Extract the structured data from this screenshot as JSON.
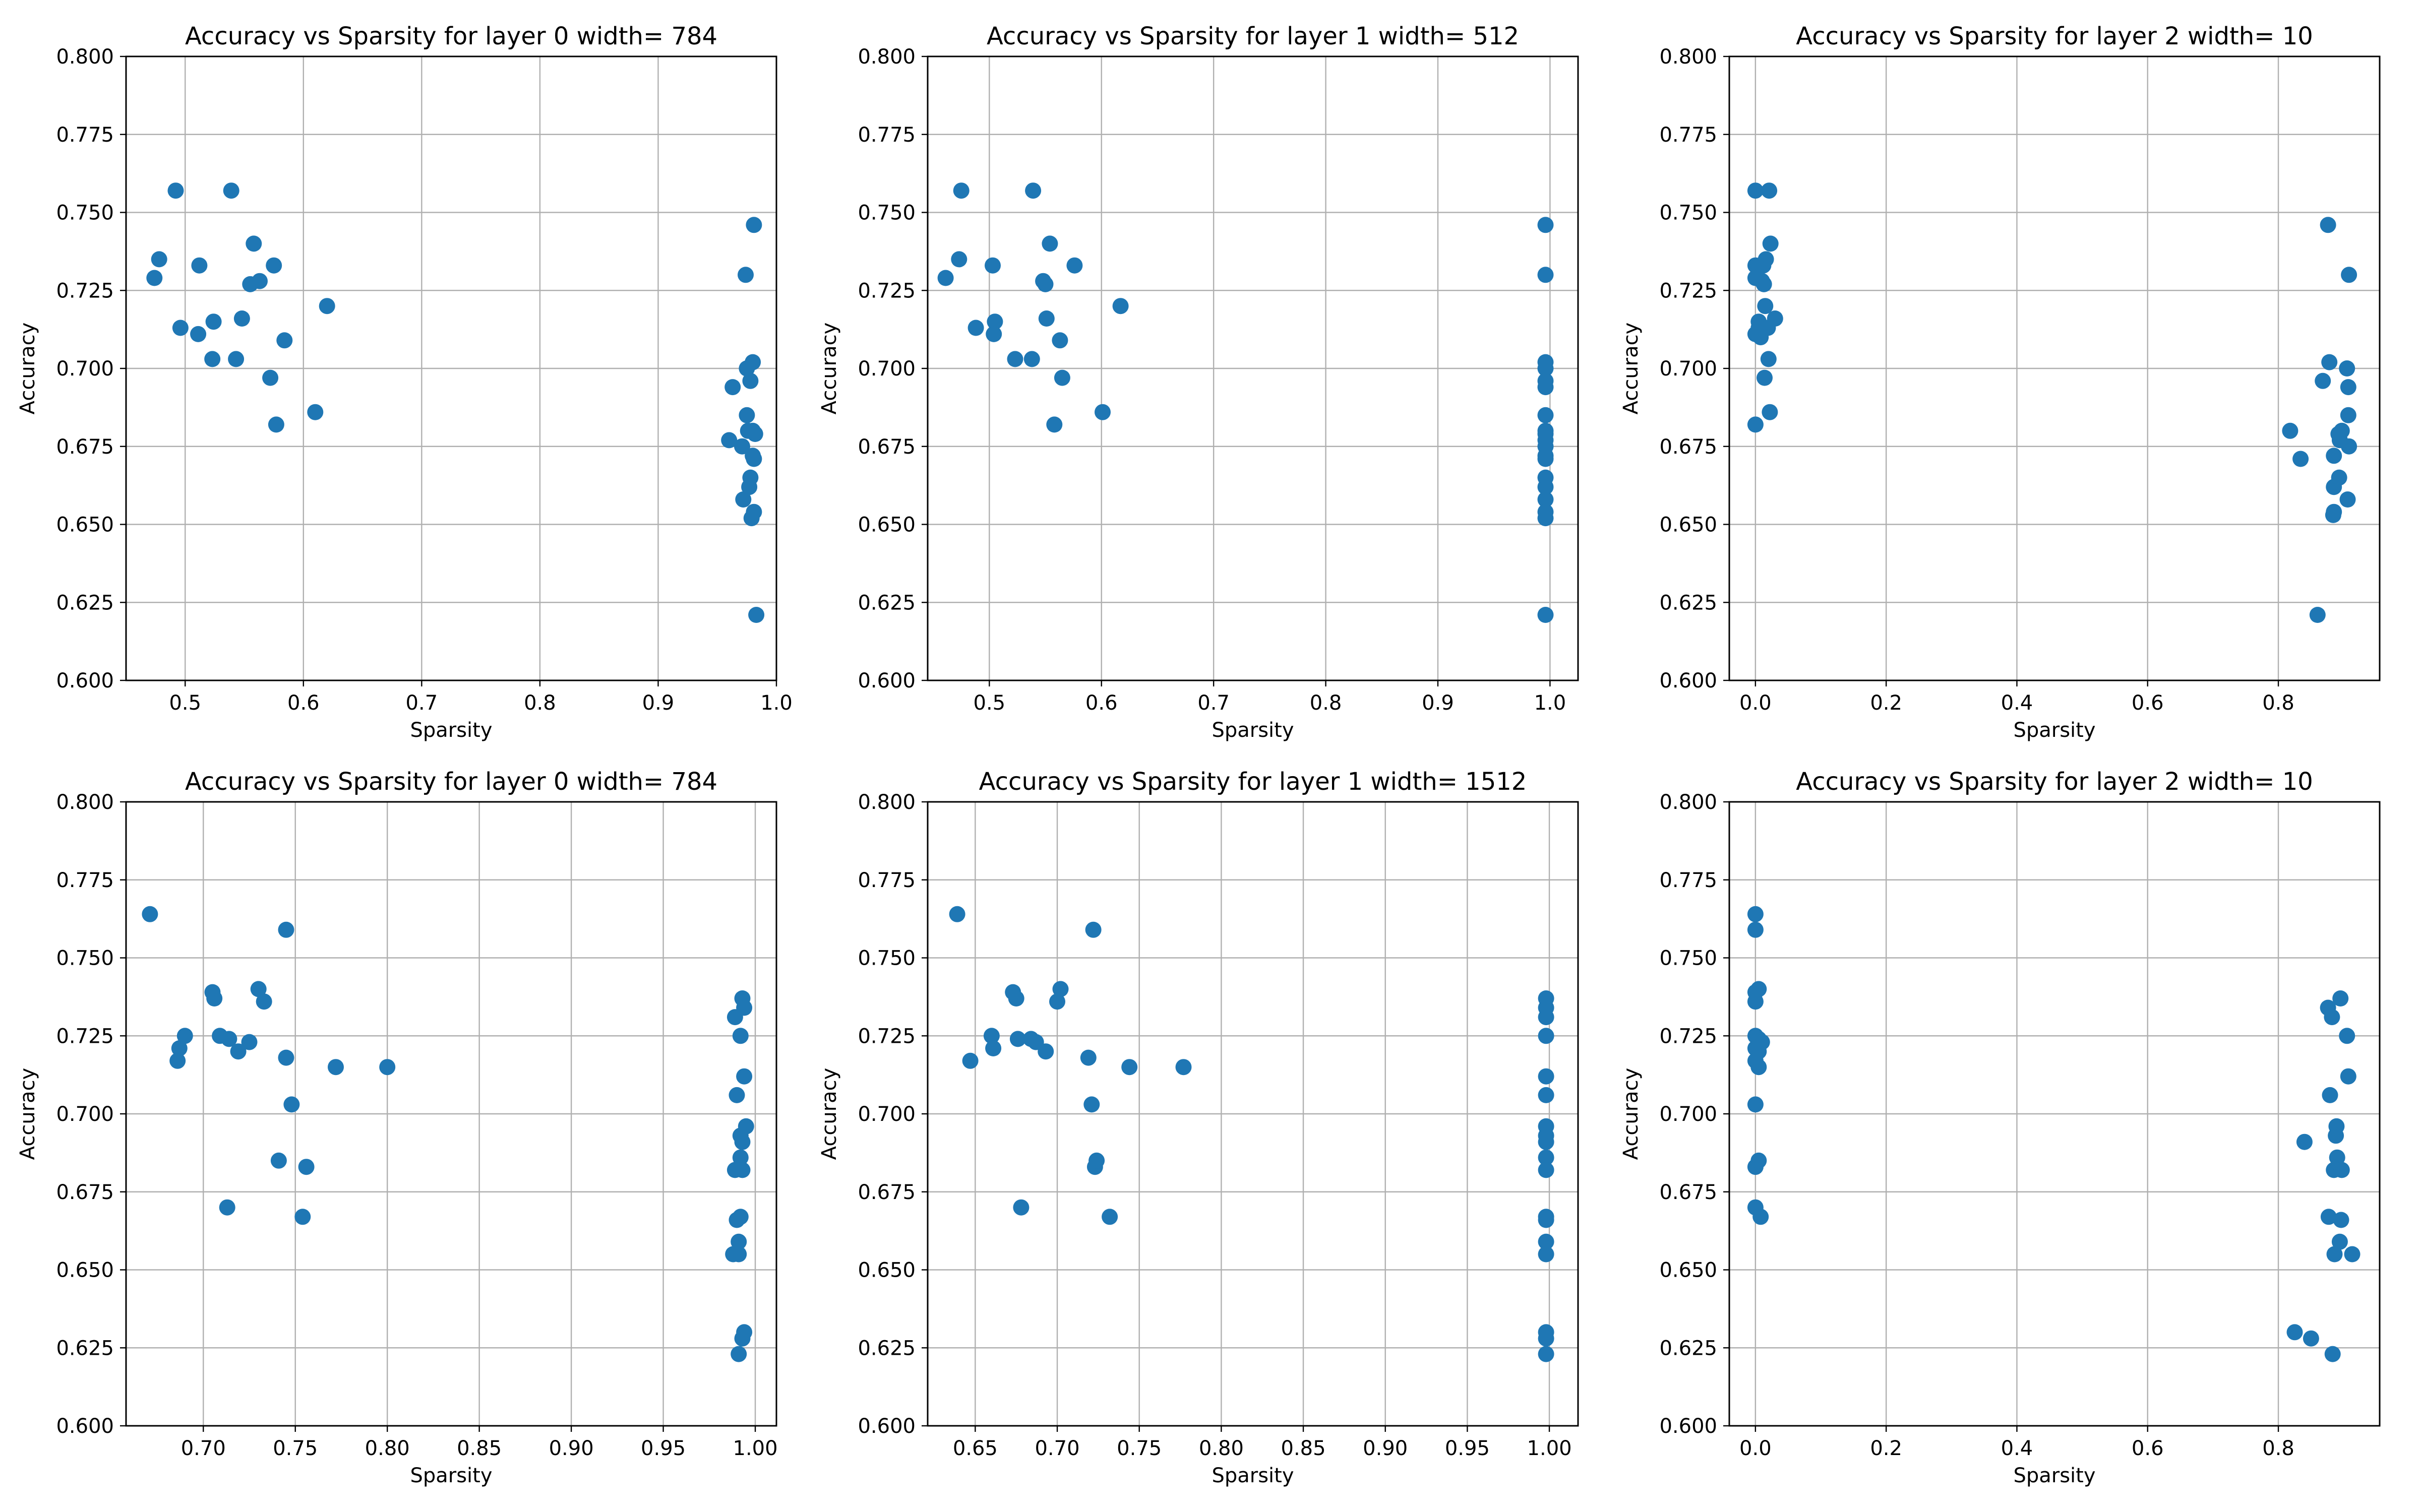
{
  "chart_data": [
    {
      "type": "scatter",
      "title": "Accuracy vs Sparsity for layer 0 width= 784",
      "xlabel": "Sparsity",
      "ylabel": "Accuracy",
      "xlim": [
        0.45,
        1.0
      ],
      "ylim": [
        0.6,
        0.8
      ],
      "xticks": [
        "0.5",
        "0.6",
        "0.7",
        "0.8",
        "0.9",
        "1.0"
      ],
      "yticks": [
        "0.600",
        "0.625",
        "0.650",
        "0.675",
        "0.700",
        "0.725",
        "0.750",
        "0.775",
        "0.800"
      ],
      "grid": true,
      "color": "#1f77b4",
      "points": [
        [
          0.474,
          0.729
        ],
        [
          0.478,
          0.735
        ],
        [
          0.492,
          0.757
        ],
        [
          0.496,
          0.713
        ],
        [
          0.511,
          0.711
        ],
        [
          0.512,
          0.733
        ],
        [
          0.523,
          0.703
        ],
        [
          0.524,
          0.715
        ],
        [
          0.539,
          0.757
        ],
        [
          0.543,
          0.703
        ],
        [
          0.548,
          0.716
        ],
        [
          0.555,
          0.727
        ],
        [
          0.558,
          0.74
        ],
        [
          0.563,
          0.728
        ],
        [
          0.572,
          0.697
        ],
        [
          0.575,
          0.733
        ],
        [
          0.577,
          0.682
        ],
        [
          0.584,
          0.709
        ],
        [
          0.61,
          0.686
        ],
        [
          0.62,
          0.72
        ],
        [
          0.96,
          0.677
        ],
        [
          0.963,
          0.694
        ],
        [
          0.971,
          0.675
        ],
        [
          0.972,
          0.658
        ],
        [
          0.974,
          0.73
        ],
        [
          0.975,
          0.7
        ],
        [
          0.975,
          0.685
        ],
        [
          0.976,
          0.68
        ],
        [
          0.977,
          0.662
        ],
        [
          0.978,
          0.665
        ],
        [
          0.978,
          0.696
        ],
        [
          0.979,
          0.652
        ],
        [
          0.98,
          0.702
        ],
        [
          0.98,
          0.68
        ],
        [
          0.98,
          0.672
        ],
        [
          0.981,
          0.654
        ],
        [
          0.981,
          0.746
        ],
        [
          0.981,
          0.671
        ],
        [
          0.982,
          0.679
        ],
        [
          0.983,
          0.621
        ]
      ]
    },
    {
      "type": "scatter",
      "title": "Accuracy vs Sparsity for layer 1 width= 512",
      "xlabel": "Sparsity",
      "ylabel": "Accuracy",
      "xlim": [
        0.445,
        1.025
      ],
      "ylim": [
        0.6,
        0.8
      ],
      "xticks": [
        "0.5",
        "0.6",
        "0.7",
        "0.8",
        "0.9",
        "1.0"
      ],
      "yticks": [
        "0.600",
        "0.625",
        "0.650",
        "0.675",
        "0.700",
        "0.725",
        "0.750",
        "0.775",
        "0.800"
      ],
      "grid": true,
      "color": "#1f77b4",
      "points": [
        [
          0.461,
          0.729
        ],
        [
          0.473,
          0.735
        ],
        [
          0.475,
          0.757
        ],
        [
          0.488,
          0.713
        ],
        [
          0.503,
          0.733
        ],
        [
          0.504,
          0.711
        ],
        [
          0.505,
          0.715
        ],
        [
          0.523,
          0.703
        ],
        [
          0.538,
          0.703
        ],
        [
          0.539,
          0.757
        ],
        [
          0.548,
          0.728
        ],
        [
          0.55,
          0.727
        ],
        [
          0.551,
          0.716
        ],
        [
          0.554,
          0.74
        ],
        [
          0.558,
          0.682
        ],
        [
          0.563,
          0.709
        ],
        [
          0.565,
          0.697
        ],
        [
          0.576,
          0.733
        ],
        [
          0.601,
          0.686
        ],
        [
          0.617,
          0.72
        ],
        [
          0.996,
          0.746
        ],
        [
          0.996,
          0.73
        ],
        [
          0.996,
          0.702
        ],
        [
          0.996,
          0.7
        ],
        [
          0.996,
          0.696
        ],
        [
          0.996,
          0.694
        ],
        [
          0.996,
          0.685
        ],
        [
          0.996,
          0.68
        ],
        [
          0.996,
          0.679
        ],
        [
          0.996,
          0.677
        ],
        [
          0.996,
          0.675
        ],
        [
          0.996,
          0.672
        ],
        [
          0.996,
          0.671
        ],
        [
          0.996,
          0.665
        ],
        [
          0.996,
          0.662
        ],
        [
          0.996,
          0.658
        ],
        [
          0.996,
          0.654
        ],
        [
          0.996,
          0.652
        ],
        [
          0.996,
          0.621
        ]
      ]
    },
    {
      "type": "scatter",
      "title": "Accuracy vs Sparsity for layer 2 width= 10",
      "xlabel": "Sparsity",
      "ylabel": "Accuracy",
      "xlim": [
        -0.04,
        0.955
      ],
      "ylim": [
        0.6,
        0.8
      ],
      "xticks": [
        "0.0",
        "0.2",
        "0.4",
        "0.6",
        "0.8"
      ],
      "yticks": [
        "0.600",
        "0.625",
        "0.650",
        "0.675",
        "0.700",
        "0.725",
        "0.750",
        "0.775",
        "0.800"
      ],
      "grid": true,
      "color": "#1f77b4",
      "points": [
        [
          0.0,
          0.757
        ],
        [
          0.0,
          0.733
        ],
        [
          0.0,
          0.729
        ],
        [
          0.0,
          0.711
        ],
        [
          0.0,
          0.682
        ],
        [
          0.005,
          0.713
        ],
        [
          0.005,
          0.715
        ],
        [
          0.008,
          0.71
        ],
        [
          0.01,
          0.728
        ],
        [
          0.012,
          0.733
        ],
        [
          0.013,
          0.727
        ],
        [
          0.014,
          0.697
        ],
        [
          0.015,
          0.72
        ],
        [
          0.016,
          0.735
        ],
        [
          0.019,
          0.713
        ],
        [
          0.02,
          0.703
        ],
        [
          0.021,
          0.757
        ],
        [
          0.022,
          0.686
        ],
        [
          0.023,
          0.74
        ],
        [
          0.03,
          0.716
        ],
        [
          0.818,
          0.68
        ],
        [
          0.834,
          0.671
        ],
        [
          0.86,
          0.621
        ],
        [
          0.868,
          0.696
        ],
        [
          0.876,
          0.746
        ],
        [
          0.878,
          0.702
        ],
        [
          0.884,
          0.653
        ],
        [
          0.885,
          0.654
        ],
        [
          0.885,
          0.672
        ],
        [
          0.885,
          0.662
        ],
        [
          0.892,
          0.679
        ],
        [
          0.893,
          0.665
        ],
        [
          0.894,
          0.677
        ],
        [
          0.897,
          0.68
        ],
        [
          0.905,
          0.7
        ],
        [
          0.906,
          0.658
        ],
        [
          0.907,
          0.685
        ],
        [
          0.907,
          0.694
        ],
        [
          0.908,
          0.73
        ],
        [
          0.908,
          0.675
        ]
      ]
    },
    {
      "type": "scatter",
      "title": "Accuracy vs Sparsity for layer 0 width= 784",
      "xlabel": "Sparsity",
      "ylabel": "Accuracy",
      "xlim": [
        0.658,
        1.0115
      ],
      "ylim": [
        0.6,
        0.8
      ],
      "xticks": [
        "0.70",
        "0.75",
        "0.80",
        "0.85",
        "0.90",
        "0.95",
        "1.00"
      ],
      "yticks": [
        "0.600",
        "0.625",
        "0.650",
        "0.675",
        "0.700",
        "0.725",
        "0.750",
        "0.775",
        "0.800"
      ],
      "grid": true,
      "color": "#1f77b4",
      "points": [
        [
          0.671,
          0.764
        ],
        [
          0.686,
          0.717
        ],
        [
          0.687,
          0.721
        ],
        [
          0.69,
          0.725
        ],
        [
          0.705,
          0.739
        ],
        [
          0.706,
          0.737
        ],
        [
          0.709,
          0.725
        ],
        [
          0.713,
          0.67
        ],
        [
          0.714,
          0.724
        ],
        [
          0.719,
          0.72
        ],
        [
          0.725,
          0.723
        ],
        [
          0.73,
          0.74
        ],
        [
          0.733,
          0.736
        ],
        [
          0.741,
          0.685
        ],
        [
          0.745,
          0.759
        ],
        [
          0.745,
          0.718
        ],
        [
          0.748,
          0.703
        ],
        [
          0.754,
          0.667
        ],
        [
          0.756,
          0.683
        ],
        [
          0.772,
          0.715
        ],
        [
          0.8,
          0.715
        ],
        [
          0.988,
          0.655
        ],
        [
          0.989,
          0.682
        ],
        [
          0.989,
          0.731
        ],
        [
          0.99,
          0.706
        ],
        [
          0.99,
          0.666
        ],
        [
          0.991,
          0.623
        ],
        [
          0.991,
          0.659
        ],
        [
          0.991,
          0.655
        ],
        [
          0.992,
          0.725
        ],
        [
          0.992,
          0.693
        ],
        [
          0.992,
          0.686
        ],
        [
          0.992,
          0.667
        ],
        [
          0.993,
          0.737
        ],
        [
          0.993,
          0.628
        ],
        [
          0.993,
          0.691
        ],
        [
          0.993,
          0.682
        ],
        [
          0.994,
          0.734
        ],
        [
          0.994,
          0.712
        ],
        [
          0.994,
          0.63
        ],
        [
          0.995,
          0.696
        ]
      ]
    },
    {
      "type": "scatter",
      "title": "Accuracy vs Sparsity for layer 1 width= 1512",
      "xlabel": "Sparsity",
      "ylabel": "Accuracy",
      "xlim": [
        0.621,
        1.0175
      ],
      "ylim": [
        0.6,
        0.8
      ],
      "xticks": [
        "0.65",
        "0.70",
        "0.75",
        "0.80",
        "0.85",
        "0.90",
        "0.95",
        "1.00"
      ],
      "yticks": [
        "0.600",
        "0.625",
        "0.650",
        "0.675",
        "0.700",
        "0.725",
        "0.750",
        "0.775",
        "0.800"
      ],
      "grid": true,
      "color": "#1f77b4",
      "points": [
        [
          0.639,
          0.764
        ],
        [
          0.647,
          0.717
        ],
        [
          0.66,
          0.725
        ],
        [
          0.661,
          0.721
        ],
        [
          0.673,
          0.739
        ],
        [
          0.675,
          0.737
        ],
        [
          0.676,
          0.724
        ],
        [
          0.678,
          0.67
        ],
        [
          0.684,
          0.724
        ],
        [
          0.687,
          0.723
        ],
        [
          0.693,
          0.72
        ],
        [
          0.7,
          0.736
        ],
        [
          0.702,
          0.74
        ],
        [
          0.719,
          0.718
        ],
        [
          0.721,
          0.703
        ],
        [
          0.722,
          0.759
        ],
        [
          0.723,
          0.683
        ],
        [
          0.724,
          0.685
        ],
        [
          0.732,
          0.667
        ],
        [
          0.744,
          0.715
        ],
        [
          0.777,
          0.715
        ],
        [
          0.998,
          0.737
        ],
        [
          0.998,
          0.734
        ],
        [
          0.998,
          0.731
        ],
        [
          0.998,
          0.725
        ],
        [
          0.998,
          0.712
        ],
        [
          0.998,
          0.706
        ],
        [
          0.998,
          0.696
        ],
        [
          0.998,
          0.693
        ],
        [
          0.998,
          0.691
        ],
        [
          0.998,
          0.686
        ],
        [
          0.998,
          0.682
        ],
        [
          0.998,
          0.667
        ],
        [
          0.998,
          0.666
        ],
        [
          0.998,
          0.659
        ],
        [
          0.998,
          0.655
        ],
        [
          0.998,
          0.63
        ],
        [
          0.998,
          0.628
        ],
        [
          0.998,
          0.623
        ]
      ]
    },
    {
      "type": "scatter",
      "title": "Accuracy vs Sparsity for layer 2 width= 10",
      "xlabel": "Sparsity",
      "ylabel": "Accuracy",
      "xlim": [
        -0.04,
        0.955
      ],
      "ylim": [
        0.6,
        0.8
      ],
      "xticks": [
        "0.0",
        "0.2",
        "0.4",
        "0.6",
        "0.8"
      ],
      "yticks": [
        "0.600",
        "0.625",
        "0.650",
        "0.675",
        "0.700",
        "0.725",
        "0.750",
        "0.775",
        "0.800"
      ],
      "grid": true,
      "color": "#1f77b4",
      "points": [
        [
          0.0,
          0.764
        ],
        [
          0.0,
          0.759
        ],
        [
          0.0,
          0.739
        ],
        [
          0.0,
          0.736
        ],
        [
          0.0,
          0.725
        ],
        [
          0.0,
          0.721
        ],
        [
          0.0,
          0.717
        ],
        [
          0.0,
          0.703
        ],
        [
          0.0,
          0.683
        ],
        [
          0.0,
          0.67
        ],
        [
          0.005,
          0.74
        ],
        [
          0.005,
          0.724
        ],
        [
          0.005,
          0.72
        ],
        [
          0.005,
          0.715
        ],
        [
          0.005,
          0.685
        ],
        [
          0.008,
          0.667
        ],
        [
          0.01,
          0.723
        ],
        [
          0.825,
          0.63
        ],
        [
          0.84,
          0.691
        ],
        [
          0.85,
          0.628
        ],
        [
          0.876,
          0.734
        ],
        [
          0.877,
          0.667
        ],
        [
          0.879,
          0.706
        ],
        [
          0.882,
          0.731
        ],
        [
          0.883,
          0.623
        ],
        [
          0.885,
          0.682
        ],
        [
          0.886,
          0.655
        ],
        [
          0.888,
          0.693
        ],
        [
          0.889,
          0.696
        ],
        [
          0.89,
          0.686
        ],
        [
          0.894,
          0.659
        ],
        [
          0.895,
          0.737
        ],
        [
          0.896,
          0.666
        ],
        [
          0.897,
          0.682
        ],
        [
          0.905,
          0.725
        ],
        [
          0.907,
          0.712
        ],
        [
          0.913,
          0.655
        ]
      ]
    }
  ]
}
